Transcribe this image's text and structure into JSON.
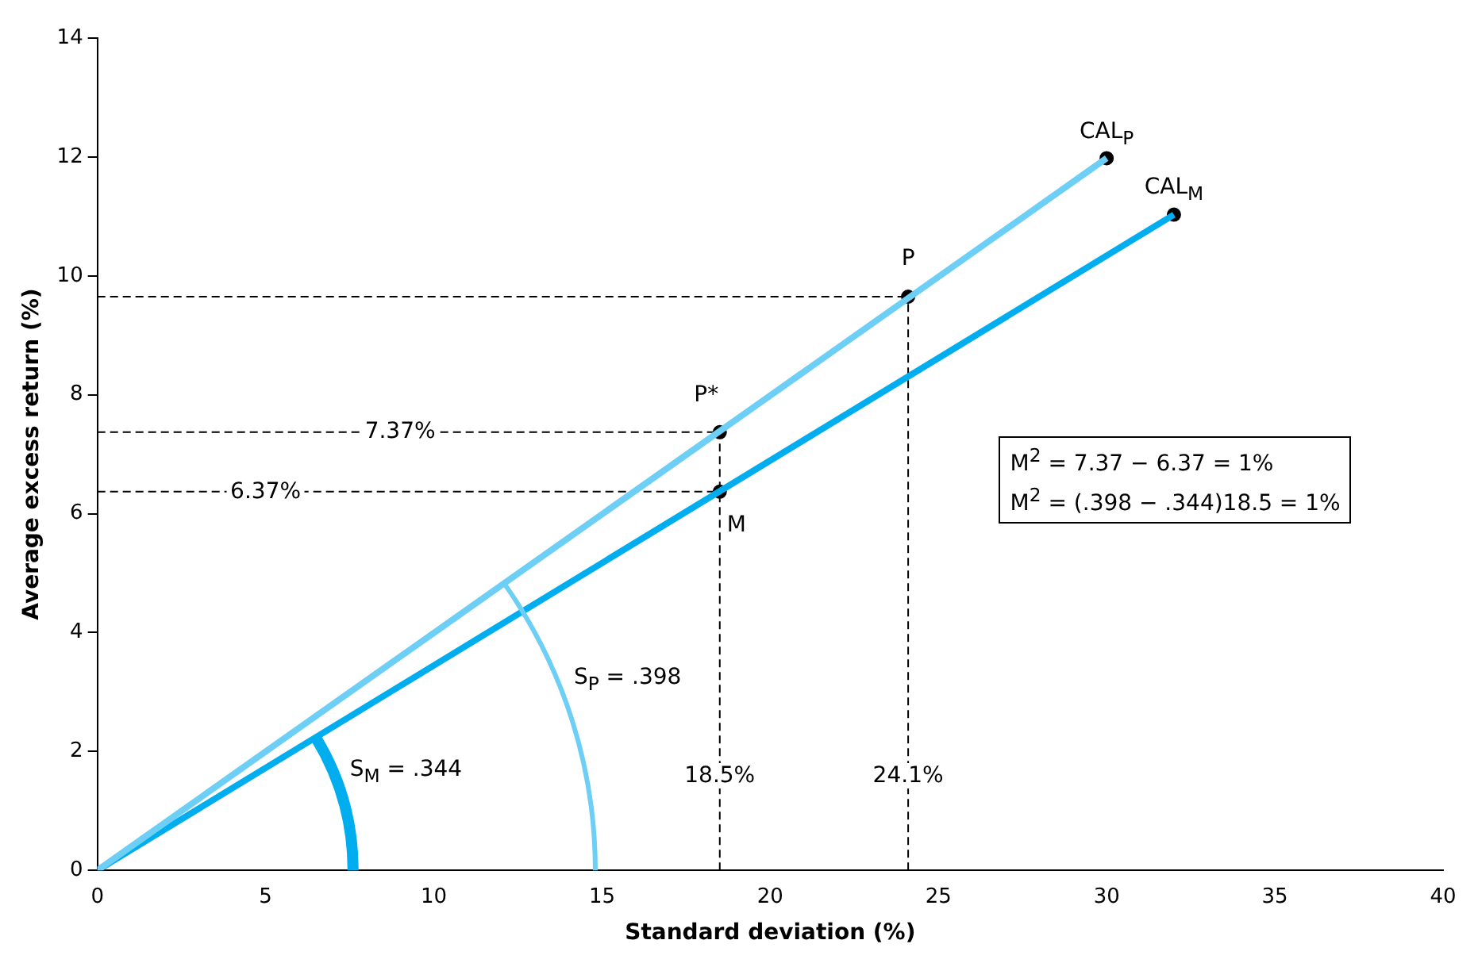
{
  "chart_data": {
    "type": "line",
    "xlabel": "Standard deviation (%)",
    "ylabel": "Average excess return (%)",
    "xlim": [
      0,
      40
    ],
    "xticks": [
      0,
      5,
      10,
      15,
      20,
      25,
      30,
      35,
      40
    ],
    "ylim": [
      0,
      14
    ],
    "yticks": [
      0,
      2,
      4,
      6,
      8,
      10,
      12,
      14
    ],
    "grid": false,
    "legend": false,
    "series": [
      {
        "name": "CAL$_{P}$",
        "color": "#6dcff6",
        "x": [
          0,
          30
        ],
        "values": [
          0,
          11.98
        ],
        "marker": "none",
        "line_style": "solid"
      },
      {
        "name": "CAL$_{M}$",
        "color": "#00aeef",
        "x": [
          0,
          32
        ],
        "values": [
          0,
          11.03
        ],
        "marker": "none",
        "line_style": "solid"
      },
      {
        "color": "#000000",
        "x": [
          0,
          24.1
        ],
        "values": [
          9.65,
          9.65
        ],
        "marker": "none",
        "line_style": "dashed"
      },
      {
        "color": "#000000",
        "x": [
          0,
          18.5
        ],
        "values": [
          7.37,
          7.37
        ],
        "marker": "none",
        "line_style": "dashed"
      },
      {
        "color": "#000000",
        "x": [
          0,
          18.5
        ],
        "values": [
          6.37,
          6.37
        ],
        "marker": "none",
        "line_style": "dashed"
      },
      {
        "color": "#000000",
        "x": [
          18.5,
          18.5
        ],
        "values": [
          0,
          7.37
        ],
        "marker": "none",
        "line_style": "dashed"
      },
      {
        "color": "#000000",
        "x": [
          24.1,
          24.1
        ],
        "values": [
          0,
          9.65
        ],
        "marker": "none",
        "line_style": "dashed"
      },
      {
        "type": "scatter",
        "color": "#000000",
        "x": [
          18.5,
          24.1,
          30,
          18.5,
          32
        ],
        "values": [
          7.37,
          9.65,
          11.98,
          6.37,
          11.03
        ],
        "marker": "circle"
      }
    ],
    "annotations": [
      {
        "text": "P",
        "x": 24.1,
        "y": 10.3
      },
      {
        "text": "P*",
        "x": 18.1,
        "y": 8.0
      },
      {
        "text": "M",
        "x": 19.0,
        "y": 5.8
      },
      {
        "text": "7.37%",
        "x": 9,
        "y": 7.37
      },
      {
        "text": "6.37%",
        "x": 5,
        "y": 6.37
      },
      {
        "text": "18.5%",
        "x": 18.5,
        "y": 1.6
      },
      {
        "text": "24.1%",
        "x": 24.1,
        "y": 1.6
      },
      "S$_{P}$ = .398",
      "S$_{M}$ = .344",
      "M$^{2}$ = 7.37 − 6.37 = 1%",
      "M$^{2}$ = (.398 − .344)18.5 = 1%"
    ]
  }
}
